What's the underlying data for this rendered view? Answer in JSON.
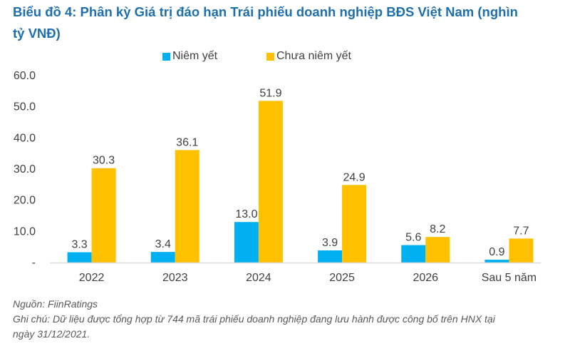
{
  "title_line1": "Biểu đồ 4: Phân kỳ Giá trị đáo hạn Trái phiếu doanh nghiệp BĐS Việt Nam (nghìn",
  "title_line2": "tỷ VNĐ)",
  "notes": {
    "source": "Nguồn: FiinRatings",
    "note_line1": "Ghi chú: Dữ liệu được tổng hợp từ 744 mã trái phiếu doanh nghiệp đang lưu hành được công bố trên HNX tại",
    "note_line2": "ngày 31/12/2021."
  },
  "colors": {
    "listed": "#00b0f0",
    "unlisted": "#ffc000",
    "title": "#1f6fad",
    "text": "#404040",
    "axis": "#d9d9d9"
  },
  "chart_data": {
    "type": "bar",
    "title": "Biểu đồ 4: Phân kỳ Giá trị đáo hạn Trái phiếu doanh nghiệp BĐS Việt Nam (nghìn tỷ VNĐ)",
    "xlabel": "",
    "ylabel": "",
    "categories": [
      "2022",
      "2023",
      "2024",
      "2025",
      "2026",
      "Sau 5 năm"
    ],
    "series": [
      {
        "name": "Niêm yết",
        "values": [
          3.3,
          3.4,
          13.0,
          3.9,
          5.6,
          0.9
        ],
        "labels": [
          "3.3",
          "3.4",
          "13.0",
          "3.9",
          "5.6",
          "0.9"
        ]
      },
      {
        "name": "Chưa niêm yết",
        "values": [
          30.3,
          36.1,
          51.9,
          24.9,
          8.2,
          7.7
        ],
        "labels": [
          "30.3",
          "36.1",
          "51.9",
          "24.9",
          "8.2",
          "7.7"
        ]
      }
    ],
    "ylim": [
      0,
      60
    ],
    "yticks": [
      0,
      10,
      20,
      30,
      40,
      50,
      60
    ],
    "ytick_labels": [
      "-",
      "10.0",
      "20.0",
      "30.0",
      "40.0",
      "50.0",
      "60.0"
    ],
    "grid": false,
    "legend": "top-center",
    "data_labels": true
  }
}
